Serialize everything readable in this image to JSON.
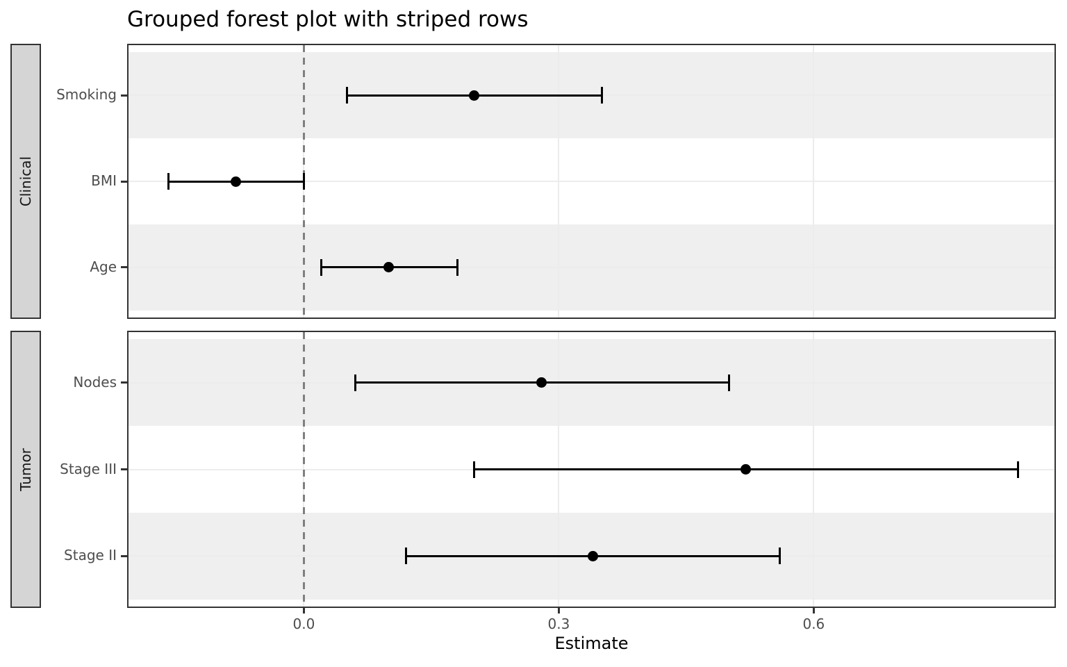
{
  "title": "Grouped forest plot with striped rows",
  "chart_data": {
    "type": "forest",
    "title": "Grouped forest plot with striped rows",
    "xlabel": "Estimate",
    "ylabel": "",
    "xlim": [
      -0.208,
      0.885
    ],
    "x_ticks": [
      0.0,
      0.3,
      0.6
    ],
    "x_tick_labels": [
      "0.0",
      "0.3",
      "0.6"
    ],
    "reference_line": 0.0,
    "grid": true,
    "striped_rows": true,
    "legend_position": "none",
    "facets": [
      {
        "label": "Clinical",
        "rows": [
          {
            "label": "Smoking",
            "estimate": 0.2,
            "ci_low": 0.05,
            "ci_high": 0.35
          },
          {
            "label": "BMI",
            "estimate": -0.08,
            "ci_low": -0.16,
            "ci_high": 0.0
          },
          {
            "label": "Age",
            "estimate": 0.1,
            "ci_low": 0.02,
            "ci_high": 0.18
          }
        ]
      },
      {
        "label": "Tumor",
        "rows": [
          {
            "label": "Nodes",
            "estimate": 0.28,
            "ci_low": 0.06,
            "ci_high": 0.5
          },
          {
            "label": "Stage III",
            "estimate": 0.52,
            "ci_low": 0.2,
            "ci_high": 0.84
          },
          {
            "label": "Stage II",
            "estimate": 0.34,
            "ci_low": 0.12,
            "ci_high": 0.56
          }
        ]
      }
    ],
    "colors": {
      "stripe": "#efefef",
      "grid": "#ececec",
      "reference_line": "#7f7f7f",
      "point": "#000000",
      "error_bar": "#000000",
      "panel_border": "#333333",
      "strip_fill": "#d5d5d5",
      "axis_text": "#4d4d4d",
      "title_text": "#000000"
    }
  }
}
